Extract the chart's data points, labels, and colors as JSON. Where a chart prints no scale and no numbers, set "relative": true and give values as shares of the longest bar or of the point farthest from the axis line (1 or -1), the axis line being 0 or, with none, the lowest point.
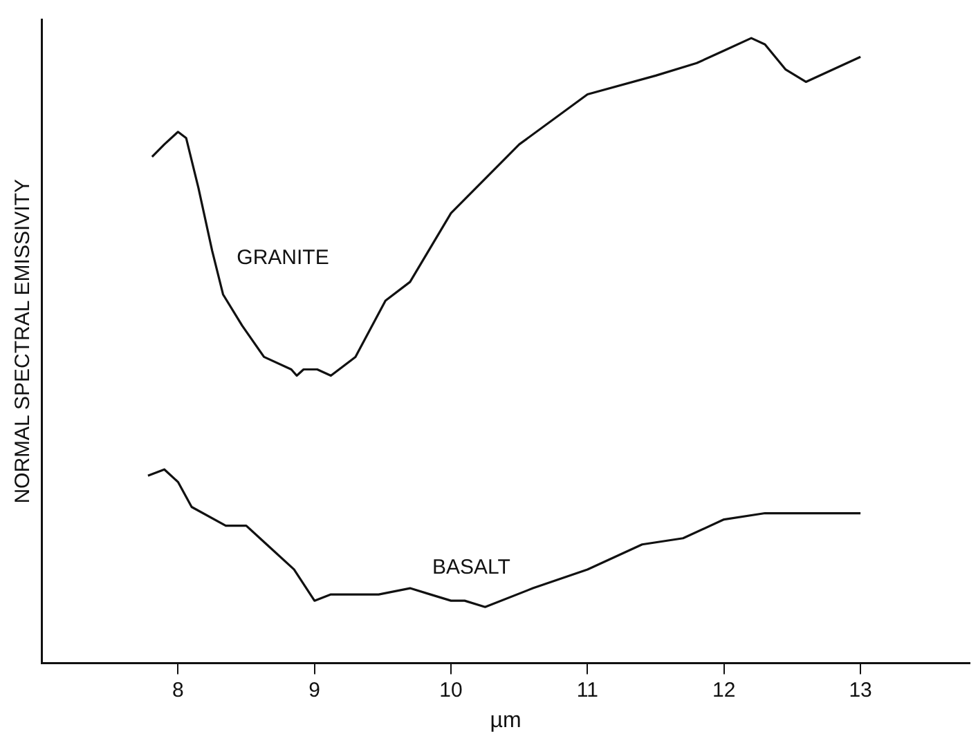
{
  "chart_data": {
    "type": "line",
    "xlabel": "µm",
    "ylabel": "NORMAL SPECTRAL EMISSIVITY",
    "relative": true,
    "xlim": [
      7,
      13.8
    ],
    "xticks": [
      8,
      9,
      10,
      11,
      12,
      13
    ],
    "grid": false,
    "legend": false,
    "marker": "none",
    "line_style": "solid",
    "series": [
      {
        "name": "GRANITE",
        "color": "#111111",
        "x": [
          7.81,
          7.9,
          8.0,
          8.06,
          8.15,
          8.25,
          8.33,
          8.47,
          8.63,
          8.83,
          8.87,
          8.92,
          9.02,
          9.12,
          9.3,
          9.52,
          9.7,
          10.0,
          10.5,
          11.0,
          11.5,
          11.8,
          12.0,
          12.2,
          12.3,
          12.45,
          12.6,
          13.0
        ],
        "values": [
          0.81,
          0.83,
          0.85,
          0.84,
          0.76,
          0.66,
          0.59,
          0.54,
          0.49,
          0.47,
          0.46,
          0.47,
          0.47,
          0.46,
          0.49,
          0.58,
          0.61,
          0.72,
          0.83,
          0.91,
          0.94,
          0.96,
          0.98,
          1.0,
          0.99,
          0.95,
          0.93,
          0.97
        ]
      },
      {
        "name": "BASALT",
        "color": "#111111",
        "x": [
          7.78,
          7.9,
          8.0,
          8.1,
          8.35,
          8.5,
          8.65,
          8.85,
          9.0,
          9.12,
          9.47,
          9.7,
          9.85,
          10.0,
          10.1,
          10.25,
          10.6,
          11.0,
          11.4,
          11.7,
          12.0,
          12.3,
          13.0
        ],
        "values": [
          0.3,
          0.31,
          0.29,
          0.25,
          0.22,
          0.22,
          0.19,
          0.15,
          0.1,
          0.11,
          0.11,
          0.12,
          0.11,
          0.1,
          0.1,
          0.09,
          0.12,
          0.15,
          0.19,
          0.2,
          0.23,
          0.24,
          0.24
        ]
      }
    ]
  }
}
